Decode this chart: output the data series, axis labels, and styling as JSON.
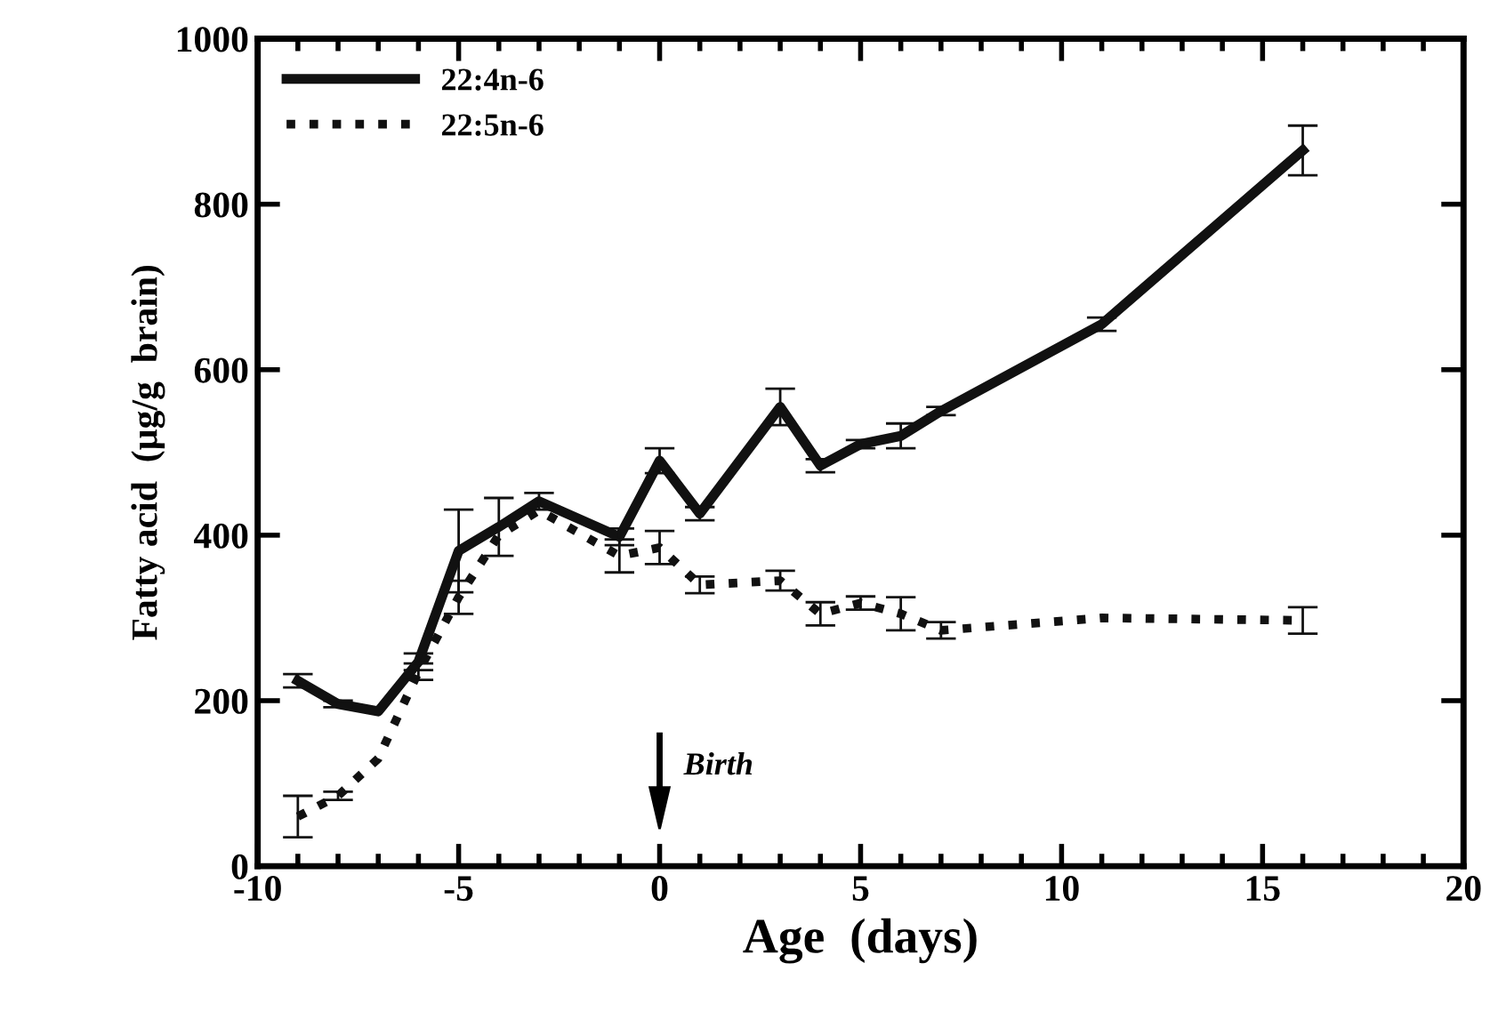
{
  "chart_data": {
    "type": "line",
    "xlabel": "Age  (days)",
    "ylabel": "Fatty acid  (µg/g  brain)",
    "x": [
      -9,
      -8,
      -7,
      -6,
      -5,
      -4,
      -3,
      -1,
      0,
      1,
      3,
      4,
      5,
      6,
      7,
      11,
      16
    ],
    "series": [
      {
        "name": "22:4n-6",
        "color": "#111111",
        "line_style": "solid",
        "values": [
          224,
          196,
          187,
          247,
          381,
          410,
          441,
          398,
          490,
          426,
          555,
          484,
          510,
          520,
          550,
          655,
          865
        ],
        "errors": [
          8,
          4,
          null,
          10,
          50,
          35,
          10,
          10,
          15,
          8,
          22,
          8,
          5,
          15,
          5,
          8,
          30
        ]
      },
      {
        "name": "22:5n-6",
        "color": "#111111",
        "line_style": "dotted",
        "values": [
          60,
          85,
          130,
          235,
          325,
          400,
          430,
          375,
          385,
          340,
          345,
          305,
          318,
          305,
          285,
          300,
          297
        ],
        "errors": [
          25,
          5,
          null,
          10,
          20,
          null,
          null,
          20,
          20,
          10,
          12,
          14,
          8,
          20,
          10,
          null,
          16
        ]
      }
    ],
    "xlim": [
      -10,
      20
    ],
    "xticks": [
      -10,
      -5,
      0,
      5,
      10,
      15,
      20
    ],
    "ylim": [
      0,
      1000
    ],
    "yticks": [
      0,
      200,
      400,
      600,
      800,
      1000
    ],
    "grid": false,
    "legend": "top left",
    "annotations": [
      "Birth"
    ]
  }
}
